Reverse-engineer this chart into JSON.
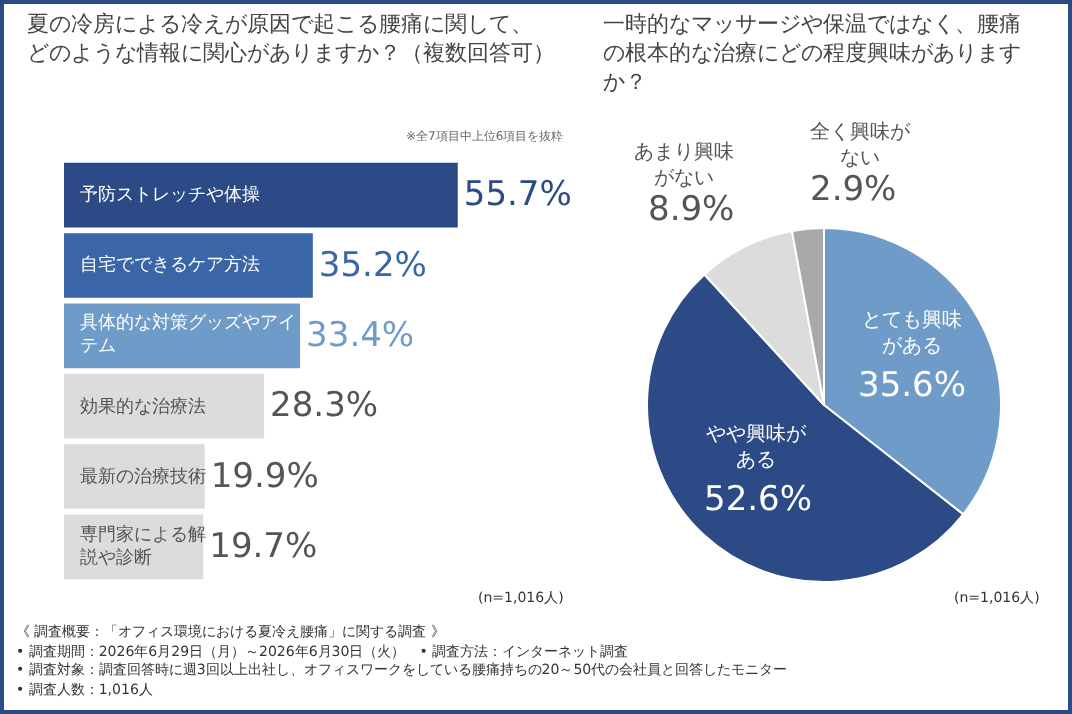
{
  "chart_data": [
    {
      "type": "bar",
      "orientation": "horizontal",
      "title": "夏の冷房による冷えが原因で起こる腰痛に関して、どのような情報に関心がありますか？（複数回答可）",
      "subtitle": "※全7項目中上位6項目を抜粋",
      "categories": [
        "予防ストレッチや体操",
        "自宅でできるケア方法",
        "具体的な対策グッズやアイテム",
        "効果的な治療法",
        "最新の治療技術",
        "専門家による解説や診断"
      ],
      "values": [
        55.7,
        35.2,
        33.4,
        28.3,
        19.9,
        19.7
      ],
      "colors": [
        "#2c4a85",
        "#3a65a6",
        "#6f9bc8",
        "#dcdcdc",
        "#dcdcdc",
        "#dcdcdc"
      ],
      "value_labels": [
        "55.7%",
        "35.2%",
        "33.4%",
        "28.3%",
        "19.9%",
        "19.7%"
      ],
      "annotations": [
        "(n=1,016人)",
        "《 調査概要：「オフィス環境における夏冷え腰痛」に関する調査 》",
        "• 調査期間：2026年6月29日（月）～2026年6月30日（火）　• 調査方法：インターネット調査",
        "• 調査対象：調査回答時に週3回以上出社し、オフィスワークをしている腰痛持ちの20～50代の会社員と回答したモニター",
        "• 調査人数：1,016人"
      ]
    },
    {
      "type": "pie",
      "title": "一時的なマッサージや保温ではなく、腰痛の根本的な治療にどの程度興味がありますか？",
      "categories": [
        "とても興味がある",
        "やや興味がある",
        "あまり興味がない",
        "全く興味がない"
      ],
      "values": [
        35.6,
        52.6,
        8.9,
        2.9
      ],
      "colors": [
        "#6f9bc8",
        "#2c4a85",
        "#dcdcdc",
        "#a9a9a9"
      ],
      "value_labels": [
        "35.6%",
        "52.6%",
        "8.9%",
        "2.9%"
      ],
      "annotations": [
        "(n=1,016人)"
      ]
    }
  ]
}
